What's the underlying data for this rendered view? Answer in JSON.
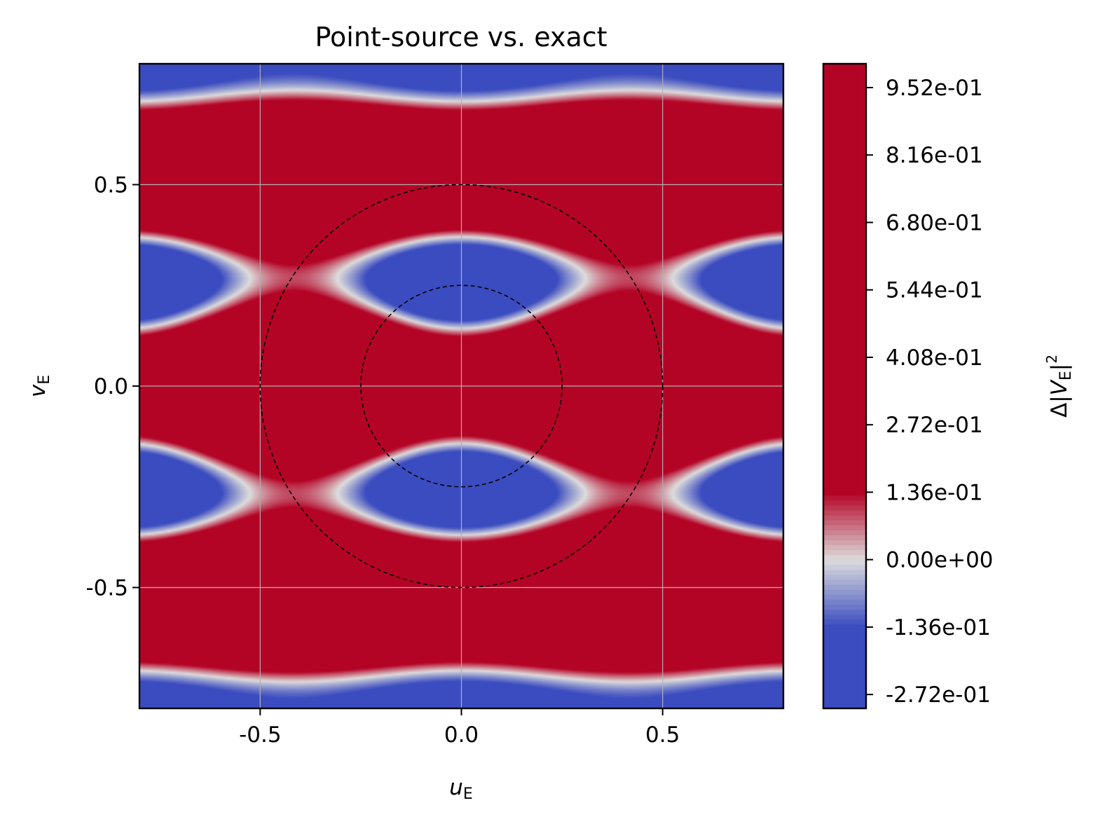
{
  "chart_data": {
    "type": "heatmap",
    "title": "Point-source vs. exact",
    "xlabel_main": "u",
    "xlabel_sub": "E",
    "ylabel_main": "v",
    "ylabel_sub": "E",
    "colorbar_label": {
      "prefix": "Δ|",
      "var": "V",
      "sub": "E",
      "suffix": "|",
      "sup": "2"
    },
    "xlim": [
      -0.8,
      0.8
    ],
    "ylim": [
      -0.8,
      0.8
    ],
    "xticks": [
      -0.5,
      0.0,
      0.5
    ],
    "xtick_labels": [
      "-0.5",
      "0.0",
      "0.5"
    ],
    "yticks": [
      -0.5,
      0.0,
      0.5
    ],
    "ytick_labels": [
      "-0.5",
      "0.0",
      "0.5"
    ],
    "grid": true,
    "colormap": "coolwarm",
    "color_min": "#3b4cc0",
    "color_mid": "#dddcdc",
    "color_max": "#b40426",
    "clim": [
      -0.3,
      1.0
    ],
    "colorbar_ticks": [
      0.952,
      0.816,
      0.68,
      0.544,
      0.408,
      0.272,
      0.136,
      0.0,
      -0.136,
      -0.272
    ],
    "colorbar_tick_labels": [
      "9.52e-01",
      "8.16e-01",
      "6.80e-01",
      "5.44e-01",
      "4.08e-01",
      "2.72e-01",
      "1.36e-01",
      "0.00e+00",
      "-1.36e-01",
      "-2.72e-01"
    ],
    "overlays": [
      {
        "shape": "circle",
        "center": [
          0,
          0
        ],
        "radius": 0.25,
        "style": "dashed",
        "color": "#000000"
      },
      {
        "shape": "circle",
        "center": [
          0,
          0
        ],
        "radius": 0.5,
        "style": "dashed",
        "color": "#000000"
      }
    ]
  }
}
